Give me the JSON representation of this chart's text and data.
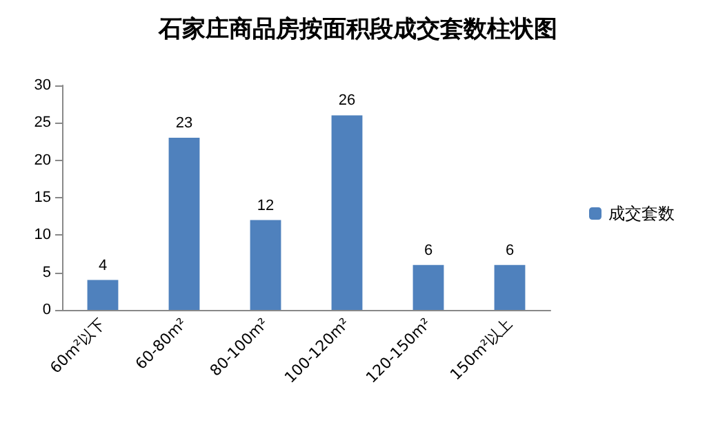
{
  "chart_data": {
    "type": "bar",
    "title": "石家庄商品房按面积段成交套数柱状图",
    "categories": [
      "60m²以下",
      "60-80m²",
      "80-100m²",
      "100-120m²",
      "120-150m²",
      "150m²以上"
    ],
    "series": [
      {
        "name": "成交套数",
        "color": "#4f81bd",
        "values": [
          4,
          23,
          12,
          26,
          6,
          6
        ]
      }
    ],
    "ylim": [
      0,
      30
    ],
    "yticks": [
      0,
      5,
      10,
      15,
      20,
      25,
      30
    ],
    "grid": false,
    "legend": "right",
    "data_labels": true
  }
}
